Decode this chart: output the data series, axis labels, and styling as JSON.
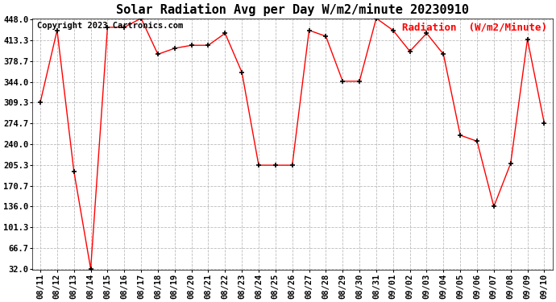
{
  "title": "Solar Radiation Avg per Day W/m2/minute 20230910",
  "copyright_text": "Copyright 2023 Cartronics.com",
  "legend_label": "Radiation  (W/m2/Minute)",
  "dates": [
    "08/11",
    "08/12",
    "08/13",
    "08/14",
    "08/15",
    "08/16",
    "08/17",
    "08/18",
    "08/19",
    "08/20",
    "08/21",
    "08/22",
    "08/23",
    "08/24",
    "08/25",
    "08/26",
    "08/27",
    "08/28",
    "08/29",
    "08/30",
    "08/31",
    "09/01",
    "09/02",
    "09/03",
    "09/04",
    "09/05",
    "09/06",
    "09/07",
    "09/08",
    "09/09",
    "09/10"
  ],
  "values": [
    310,
    430,
    195,
    32,
    435,
    435,
    450,
    390,
    400,
    405,
    405,
    425,
    360,
    205,
    205,
    205,
    430,
    420,
    345,
    345,
    450,
    430,
    395,
    425,
    390,
    255,
    245,
    136,
    208,
    415,
    275
  ],
  "y_ticks": [
    32.0,
    66.7,
    101.3,
    136.0,
    170.7,
    205.3,
    240.0,
    274.7,
    309.3,
    344.0,
    378.7,
    413.3,
    448.0
  ],
  "y_min": 32.0,
  "y_max": 448.0,
  "line_color": "red",
  "marker": "+",
  "marker_color": "black",
  "bg_color": "#ffffff",
  "grid_color": "#bbbbbb",
  "title_fontsize": 11,
  "copyright_fontsize": 7.5,
  "legend_fontsize": 9,
  "tick_fontsize": 7.5
}
